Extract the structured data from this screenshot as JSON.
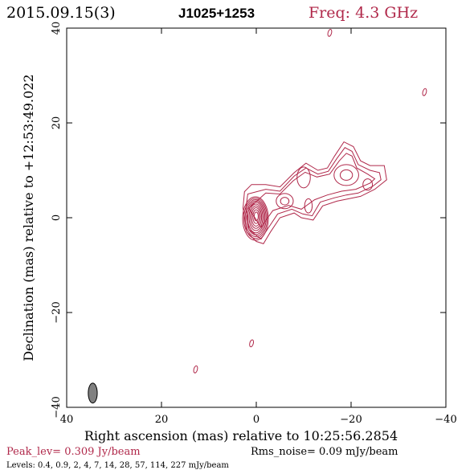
{
  "header": {
    "date": "2015.09.15(3)",
    "source": "J1025+1253",
    "freq": "Freq: 4.3 GHz"
  },
  "footer": {
    "peak": "Peak_lev=  0.309 Jy/beam",
    "rms": "Rms_noise= 0.09 mJy/beam",
    "levels": "Levels: 0.4, 0.9,   2,   4,   7,  14,  28,  57, 114, 227 mJy/beam"
  },
  "colors": {
    "contour": "#b0284a",
    "axis": "#000000",
    "beam_fill": "#808080"
  },
  "chart_data": {
    "type": "contour",
    "xlabel": "Right ascension (mas) relative to 10:25:56.2854",
    "ylabel": "Declination (mas) relative to +12:53:49.022",
    "xlim": [
      40,
      -40
    ],
    "ylim": [
      -40,
      40
    ],
    "xticks": [
      40,
      20,
      0,
      -20,
      -40
    ],
    "yticks": [
      -40,
      -20,
      0,
      20,
      40
    ],
    "levels_mJy": [
      0.4,
      0.9,
      2,
      4,
      7,
      14,
      28,
      57,
      114,
      227
    ],
    "peak_Jy_per_beam": 0.309,
    "rms_mJy_per_beam": 0.09,
    "beam": {
      "x": 34.5,
      "y": -37,
      "major_mas": 4.2,
      "minor_mas": 1.9,
      "pa_deg": 0
    },
    "core": {
      "x": 0,
      "y": 0.5
    },
    "jet_knots": [
      {
        "x": -6,
        "y": 3.5
      },
      {
        "x": -10,
        "y": 8.5
      },
      {
        "x": -11,
        "y": 2.5
      },
      {
        "x": -19,
        "y": 9
      },
      {
        "x": -23.5,
        "y": 7
      }
    ],
    "isolated_features": [
      {
        "x": -15.5,
        "y": 39
      },
      {
        "x": -35.5,
        "y": 26.5
      },
      {
        "x": 1,
        "y": -26.5
      },
      {
        "x": 12.8,
        "y": -32
      }
    ]
  }
}
